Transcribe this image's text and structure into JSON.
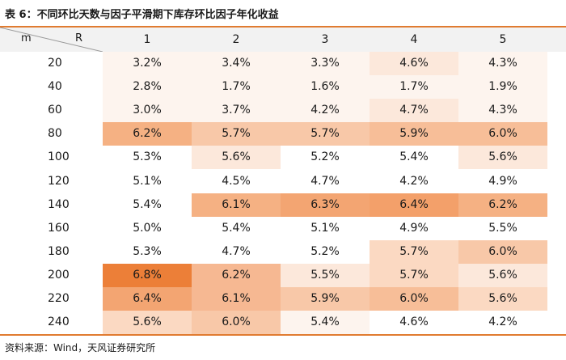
{
  "title": "表 6：不同环比天数与因子平滑期下库存环比因子年化收益",
  "source": "资料来源：Wind，天风证券研究所",
  "corner": {
    "row_label": "m",
    "col_label": "R"
  },
  "columns": [
    "1",
    "2",
    "3",
    "4",
    "5"
  ],
  "rows": [
    {
      "m": "20",
      "values": [
        "3.2%",
        "3.4%",
        "3.3%",
        "4.6%",
        "4.3%"
      ]
    },
    {
      "m": "40",
      "values": [
        "2.8%",
        "1.7%",
        "1.6%",
        "1.7%",
        "1.9%"
      ]
    },
    {
      "m": "60",
      "values": [
        "3.0%",
        "3.7%",
        "4.2%",
        "4.7%",
        "4.3%"
      ]
    },
    {
      "m": "80",
      "values": [
        "6.2%",
        "5.7%",
        "5.7%",
        "5.9%",
        "6.0%"
      ]
    },
    {
      "m": "100",
      "values": [
        "5.3%",
        "5.6%",
        "5.2%",
        "5.4%",
        "5.6%"
      ]
    },
    {
      "m": "120",
      "values": [
        "5.1%",
        "4.5%",
        "4.7%",
        "4.2%",
        "4.9%"
      ]
    },
    {
      "m": "140",
      "values": [
        "5.4%",
        "6.1%",
        "6.3%",
        "6.4%",
        "6.2%"
      ]
    },
    {
      "m": "160",
      "values": [
        "5.0%",
        "5.4%",
        "5.1%",
        "4.9%",
        "5.5%"
      ]
    },
    {
      "m": "180",
      "values": [
        "5.3%",
        "4.7%",
        "5.2%",
        "5.7%",
        "6.0%"
      ]
    },
    {
      "m": "200",
      "values": [
        "6.8%",
        "6.2%",
        "5.5%",
        "5.7%",
        "5.6%"
      ]
    },
    {
      "m": "220",
      "values": [
        "6.4%",
        "6.1%",
        "5.9%",
        "6.0%",
        "5.6%"
      ]
    },
    {
      "m": "240",
      "values": [
        "5.6%",
        "6.0%",
        "5.4%",
        "4.6%",
        "4.2%"
      ]
    }
  ],
  "colors": {
    "rule": "#e07b30",
    "header_bg": "#f2f2f2",
    "heat": [
      [
        "#fdf4ee",
        "#fdf4ee",
        "#fdf4ee",
        "#fce8db",
        "#fdf4ee"
      ],
      [
        "#fdf4ee",
        "#fdf4ee",
        "#fdf4ee",
        "#fdf4ee",
        "#fdf4ee"
      ],
      [
        "#fdf4ee",
        "#fdf4ee",
        "#fdf4ee",
        "#fce8db",
        "#fdf4ee"
      ],
      [
        "#f5b183",
        "#f8c8a8",
        "#f8c8a8",
        "#f7be98",
        "#f7be98"
      ],
      [
        "#ffffff",
        "#fce8db",
        "#ffffff",
        "#ffffff",
        "#fce8db"
      ],
      [
        "#ffffff",
        "#ffffff",
        "#ffffff",
        "#ffffff",
        "#ffffff"
      ],
      [
        "#ffffff",
        "#f5b183",
        "#f3a572",
        "#f3a06a",
        "#f5b183"
      ],
      [
        "#ffffff",
        "#ffffff",
        "#ffffff",
        "#ffffff",
        "#ffffff"
      ],
      [
        "#ffffff",
        "#ffffff",
        "#ffffff",
        "#fbd9c2",
        "#f8c8a8"
      ],
      [
        "#ec7f38",
        "#f6b892",
        "#fce8db",
        "#fbd9c2",
        "#fce8db"
      ],
      [
        "#f3a572",
        "#f6b892",
        "#f8c8a8",
        "#f7be98",
        "#fbd9c2"
      ],
      [
        "#fbd9c2",
        "#f8c8a8",
        "#fdf4ee",
        "#ffffff",
        "#ffffff"
      ]
    ]
  }
}
